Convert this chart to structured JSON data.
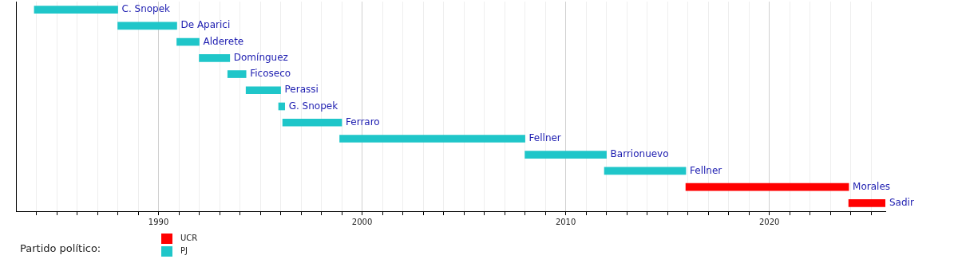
{
  "chart_data": {
    "type": "bar",
    "orientation": "horizontal",
    "legend_title": "Partido político:",
    "legend": "bottom left",
    "grid": "x",
    "tick_labels": "x",
    "categories": [
      "C. Snopek",
      "De Aparici",
      "Alderete",
      "Domínguez",
      "Ficoseco",
      "Perassi",
      "G. Snopek",
      "Ferraro",
      "Fellner",
      "Barrionuevo",
      "Fellner",
      "Morales",
      "Sadir"
    ],
    "series": [
      {
        "name": "UCR",
        "color": "#ff0000",
        "base": [
          null,
          null,
          null,
          null,
          null,
          null,
          null,
          null,
          null,
          null,
          null,
          2015.9,
          2023.9
        ],
        "values": [
          null,
          null,
          null,
          null,
          null,
          null,
          null,
          null,
          null,
          null,
          null,
          8.0,
          1.8
        ]
      },
      {
        "name": "PJ",
        "color": "#1fc6c9",
        "base": [
          1983.9,
          1988.0,
          1990.9,
          1992.0,
          1993.4,
          1994.3,
          1995.9,
          1996.1,
          1998.9,
          2008.0,
          2011.9,
          null,
          null
        ],
        "values": [
          4.1,
          2.9,
          1.1,
          1.5,
          0.9,
          1.7,
          0.3,
          2.9,
          9.1,
          4.0,
          4.0,
          null,
          null
        ]
      }
    ],
    "xlim": [
      1983.0,
      2025.7
    ],
    "xticks": [
      {
        "value": 1984,
        "label": null
      },
      {
        "value": 1985,
        "label": null
      },
      {
        "value": 1986,
        "label": null
      },
      {
        "value": 1987,
        "label": null
      },
      {
        "value": 1988,
        "label": null
      },
      {
        "value": 1989,
        "label": null
      },
      1990,
      {
        "value": 1991,
        "label": null
      },
      {
        "value": 1992,
        "label": null
      },
      {
        "value": 1993,
        "label": null
      },
      {
        "value": 1994,
        "label": null
      },
      {
        "value": 1995,
        "label": null
      },
      {
        "value": 1996,
        "label": null
      },
      {
        "value": 1997,
        "label": null
      },
      {
        "value": 1998,
        "label": null
      },
      {
        "value": 1999,
        "label": null
      },
      2000,
      {
        "value": 2001,
        "label": null
      },
      {
        "value": 2002,
        "label": null
      },
      {
        "value": 2003,
        "label": null
      },
      {
        "value": 2004,
        "label": null
      },
      {
        "value": 2005,
        "label": null
      },
      {
        "value": 2006,
        "label": null
      },
      {
        "value": 2007,
        "label": null
      },
      {
        "value": 2008,
        "label": null
      },
      {
        "value": 2009,
        "label": null
      },
      2010,
      {
        "value": 2011,
        "label": null
      },
      {
        "value": 2012,
        "label": null
      },
      {
        "value": 2013,
        "label": null
      },
      {
        "value": 2014,
        "label": null
      },
      {
        "value": 2015,
        "label": null
      },
      {
        "value": 2016,
        "label": null
      },
      {
        "value": 2017,
        "label": null
      },
      {
        "value": 2018,
        "label": null
      },
      {
        "value": 2019,
        "label": null
      },
      2020,
      {
        "value": 2021,
        "label": null
      },
      {
        "value": 2022,
        "label": null
      },
      {
        "value": 2023,
        "label": null
      },
      {
        "value": 2024,
        "label": null
      },
      {
        "value": 2025,
        "label": null
      }
    ]
  }
}
